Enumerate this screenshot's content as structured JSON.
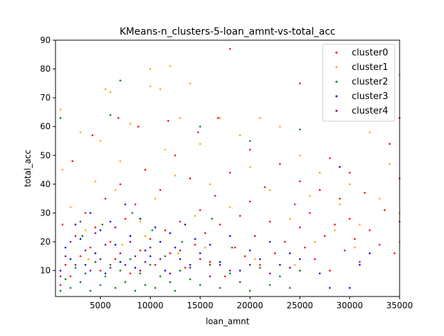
{
  "chart_data": {
    "type": "scatter",
    "title": "KMeans-n_clusters-5-loan_amnt-vs-total_acc",
    "xlabel": "loan_amnt",
    "ylabel": "total_acc",
    "xlim": [
      500,
      35000
    ],
    "ylim": [
      1,
      90
    ],
    "xticks": [
      5000,
      10000,
      15000,
      20000,
      25000,
      30000,
      35000
    ],
    "xtick_labels": [
      "5000",
      "10000",
      "15000",
      "20000",
      "25000",
      "30000",
      "35000"
    ],
    "yticks": [
      10,
      20,
      30,
      40,
      50,
      60,
      70,
      80,
      90
    ],
    "ytick_labels": [
      "10",
      "20",
      "30",
      "40",
      "50",
      "60",
      "70",
      "80",
      "90"
    ],
    "legend_position": "top-right",
    "grid": false,
    "series": [
      {
        "name": "cluster0",
        "color": "#ff0000",
        "points": [
          [
            1000,
            5
          ],
          [
            1500,
            12
          ],
          [
            2000,
            8
          ],
          [
            2500,
            22
          ],
          [
            3000,
            15
          ],
          [
            3500,
            30
          ],
          [
            4000,
            18
          ],
          [
            4500,
            25
          ],
          [
            5000,
            10
          ],
          [
            5500,
            35
          ],
          [
            6000,
            20
          ],
          [
            6500,
            14
          ],
          [
            7000,
            40
          ],
          [
            7500,
            28
          ],
          [
            8000,
            9
          ],
          [
            8500,
            33
          ],
          [
            9000,
            17
          ],
          [
            9500,
            45
          ],
          [
            10000,
            21
          ],
          [
            10500,
            12
          ],
          [
            11000,
            38
          ],
          [
            11500,
            24
          ],
          [
            12000,
            16
          ],
          [
            12500,
            50
          ],
          [
            13000,
            27
          ],
          [
            13500,
            11
          ],
          [
            14000,
            42
          ],
          [
            14500,
            19
          ],
          [
            15000,
            31
          ],
          [
            15500,
            23
          ],
          [
            16000,
            13
          ],
          [
            16500,
            36
          ],
          [
            17000,
            26
          ],
          [
            17500,
            8
          ],
          [
            18000,
            87
          ],
          [
            18000,
            44
          ],
          [
            18500,
            18
          ],
          [
            19000,
            29
          ],
          [
            19500,
            15
          ],
          [
            20000,
            34
          ],
          [
            20000,
            52
          ],
          [
            20500,
            22
          ],
          [
            21000,
            12
          ],
          [
            21500,
            39
          ],
          [
            22000,
            27
          ],
          [
            22500,
            16
          ],
          [
            23000,
            47
          ],
          [
            23500,
            20
          ],
          [
            24000,
            11
          ],
          [
            24500,
            33
          ],
          [
            25000,
            75
          ],
          [
            25000,
            41
          ],
          [
            25000,
            25
          ],
          [
            25500,
            18
          ],
          [
            26000,
            30
          ],
          [
            26500,
            14
          ],
          [
            27000,
            38
          ],
          [
            27500,
            22
          ],
          [
            28000,
            49
          ],
          [
            28000,
            10
          ],
          [
            28500,
            26
          ],
          [
            29000,
            35
          ],
          [
            29500,
            17
          ],
          [
            30000,
            28
          ],
          [
            30000,
            44
          ],
          [
            30500,
            21
          ],
          [
            31000,
            13
          ],
          [
            31500,
            37
          ],
          [
            32000,
            24
          ],
          [
            32500,
            63
          ],
          [
            33000,
            19
          ],
          [
            33500,
            31
          ],
          [
            34000,
            54
          ],
          [
            34500,
            16
          ],
          [
            35000,
            42
          ],
          [
            35000,
            27
          ],
          [
            35000,
            63
          ],
          [
            6800,
            63
          ],
          [
            4200,
            57
          ],
          [
            11800,
            62
          ],
          [
            2200,
            48
          ],
          [
            1200,
            26
          ],
          [
            8800,
            60
          ],
          [
            14800,
            58
          ],
          [
            16800,
            63
          ]
        ]
      },
      {
        "name": "cluster1",
        "color": "#ffa500",
        "points": [
          [
            1000,
            66
          ],
          [
            1200,
            45
          ],
          [
            2000,
            32
          ],
          [
            3000,
            58
          ],
          [
            3500,
            24
          ],
          [
            4500,
            41
          ],
          [
            5000,
            55
          ],
          [
            5500,
            73
          ],
          [
            6000,
            72
          ],
          [
            6500,
            38
          ],
          [
            7000,
            48
          ],
          [
            8000,
            61
          ],
          [
            9000,
            27
          ],
          [
            10000,
            80
          ],
          [
            10000,
            74
          ],
          [
            10500,
            35
          ],
          [
            11000,
            73
          ],
          [
            11500,
            52
          ],
          [
            12000,
            81
          ],
          [
            12500,
            43
          ],
          [
            13000,
            63
          ],
          [
            14000,
            75
          ],
          [
            14500,
            29
          ],
          [
            15000,
            54
          ],
          [
            16000,
            40
          ],
          [
            17000,
            63
          ],
          [
            18000,
            32
          ],
          [
            19000,
            57
          ],
          [
            20000,
            46
          ],
          [
            21000,
            63
          ],
          [
            22000,
            38
          ],
          [
            23000,
            60
          ],
          [
            24000,
            28
          ],
          [
            25000,
            50
          ],
          [
            26000,
            36
          ],
          [
            27000,
            44
          ],
          [
            28000,
            62
          ],
          [
            29000,
            33
          ],
          [
            30000,
            40
          ],
          [
            31000,
            26
          ],
          [
            32000,
            58
          ],
          [
            33000,
            35
          ],
          [
            34000,
            47
          ],
          [
            35000,
            78
          ],
          [
            35000,
            30
          ],
          [
            35000,
            20
          ],
          [
            15500,
            18
          ],
          [
            9500,
            22
          ],
          [
            3800,
            14
          ],
          [
            7200,
            19
          ],
          [
            12800,
            16
          ],
          [
            20500,
            14
          ],
          [
            24500,
            12
          ],
          [
            26500,
            20
          ],
          [
            28500,
            24
          ],
          [
            30500,
            18
          ]
        ]
      },
      {
        "name": "cluster2",
        "color": "#008000",
        "points": [
          [
            1000,
            3
          ],
          [
            1500,
            7
          ],
          [
            2000,
            4
          ],
          [
            2500,
            11
          ],
          [
            3000,
            6
          ],
          [
            3500,
            9
          ],
          [
            4000,
            3
          ],
          [
            4500,
            13
          ],
          [
            5000,
            5
          ],
          [
            5500,
            8
          ],
          [
            6000,
            64
          ],
          [
            6000,
            12
          ],
          [
            6500,
            4
          ],
          [
            7000,
            76
          ],
          [
            7000,
            10
          ],
          [
            7500,
            6
          ],
          [
            8000,
            14
          ],
          [
            8500,
            3
          ],
          [
            9000,
            9
          ],
          [
            9500,
            5
          ],
          [
            10000,
            12
          ],
          [
            10500,
            4
          ],
          [
            11000,
            8
          ],
          [
            11500,
            15
          ],
          [
            12000,
            6
          ],
          [
            12500,
            3
          ],
          [
            13000,
            10
          ],
          [
            14000,
            7
          ],
          [
            15000,
            60
          ],
          [
            15000,
            5
          ],
          [
            16000,
            12
          ],
          [
            17000,
            4
          ],
          [
            18000,
            9
          ],
          [
            19000,
            6
          ],
          [
            20000,
            55
          ],
          [
            20000,
            3
          ],
          [
            21000,
            11
          ],
          [
            22000,
            5
          ],
          [
            23000,
            8
          ],
          [
            24000,
            4
          ],
          [
            25000,
            59
          ],
          [
            25000,
            10
          ],
          [
            1000,
            63
          ],
          [
            3200,
            22
          ],
          [
            5200,
            26
          ],
          [
            8200,
            30
          ],
          [
            10200,
            24
          ],
          [
            13200,
            20
          ],
          [
            16200,
            28
          ],
          [
            18200,
            18
          ]
        ]
      },
      {
        "name": "cluster3",
        "color": "#0000ff",
        "points": [
          [
            1000,
            10
          ],
          [
            1500,
            18
          ],
          [
            2000,
            14
          ],
          [
            2500,
            26
          ],
          [
            3000,
            21
          ],
          [
            3500,
            12
          ],
          [
            4000,
            30
          ],
          [
            4500,
            16
          ],
          [
            5000,
            24
          ],
          [
            5500,
            9
          ],
          [
            6000,
            27
          ],
          [
            6500,
            19
          ],
          [
            7000,
            13
          ],
          [
            7500,
            33
          ],
          [
            8000,
            22
          ],
          [
            8500,
            11
          ],
          [
            9000,
            28
          ],
          [
            9500,
            17
          ],
          [
            10000,
            15
          ],
          [
            10500,
            25
          ],
          [
            11000,
            20
          ],
          [
            11500,
            10
          ],
          [
            12000,
            23
          ],
          [
            12500,
            18
          ],
          [
            13000,
            14
          ],
          [
            13500,
            26
          ],
          [
            14000,
            12
          ],
          [
            14500,
            21
          ],
          [
            15000,
            16
          ],
          [
            16000,
            19
          ],
          [
            17000,
            13
          ],
          [
            18000,
            22
          ],
          [
            19000,
            10
          ],
          [
            20000,
            17
          ],
          [
            21000,
            14
          ],
          [
            22000,
            20
          ],
          [
            23000,
            12
          ],
          [
            24000,
            16
          ],
          [
            25000,
            14
          ],
          [
            27000,
            9
          ],
          [
            28000,
            4
          ],
          [
            29000,
            46
          ],
          [
            30000,
            4
          ],
          [
            31000,
            12
          ],
          [
            32000,
            16
          ]
        ]
      },
      {
        "name": "cluster4",
        "color": "#800080",
        "points": [
          [
            1000,
            8
          ],
          [
            1500,
            15
          ],
          [
            2000,
            20
          ],
          [
            2500,
            12
          ],
          [
            3000,
            27
          ],
          [
            3500,
            17
          ],
          [
            4000,
            10
          ],
          [
            4500,
            23
          ],
          [
            5000,
            14
          ],
          [
            5500,
            19
          ],
          [
            6000,
            11
          ],
          [
            6500,
            25
          ],
          [
            7000,
            16
          ],
          [
            7500,
            12
          ],
          [
            8000,
            20
          ],
          [
            8500,
            15
          ],
          [
            9000,
            10
          ],
          [
            9500,
            13
          ],
          [
            10000,
            18
          ],
          [
            11000,
            14
          ],
          [
            12000,
            9
          ],
          [
            13000,
            17
          ],
          [
            14000,
            11
          ],
          [
            15000,
            14
          ],
          [
            16000,
            8
          ],
          [
            17000,
            12
          ],
          [
            18000,
            10
          ],
          [
            20000,
            12
          ],
          [
            22000,
            9
          ],
          [
            24000,
            11
          ]
        ]
      }
    ]
  }
}
